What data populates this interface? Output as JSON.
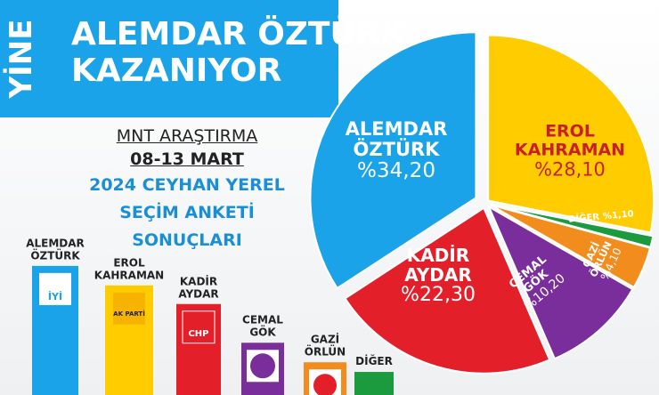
{
  "chart_data": {
    "type": "pie",
    "kicker": "YİNE",
    "title": "ALEMDAR ÖZTÜRK\nKAZANIYOR",
    "subtitle": [
      "MNT ARAŞTIRMA",
      "08-13 MART",
      "2024 CEYHAN YEREL",
      "SEÇİM ANKETİ",
      "SONUÇLARI"
    ],
    "categories": [
      "ALEMDAR\nÖZTÜRK",
      "EROL\nKAHRAMAN",
      "KADİR\nAYDAR",
      "CEMAL\nGÖK",
      "GAZİ\nÖRLÜN",
      "DİĞER"
    ],
    "values": [
      34.2,
      28.1,
      22.3,
      10.2,
      4.1,
      1.1
    ],
    "value_labels": [
      "%34,20",
      "%28,10",
      "%22,30",
      "%10,20",
      "%4,10",
      "%1,10"
    ],
    "colors": [
      "#1aa3e8",
      "#ffcc00",
      "#e3202a",
      "#7a2e9c",
      "#f28c1c",
      "#1c9a3e"
    ],
    "logos": [
      "İYİ",
      "AK PARTİ",
      "CHP"
    ]
  }
}
